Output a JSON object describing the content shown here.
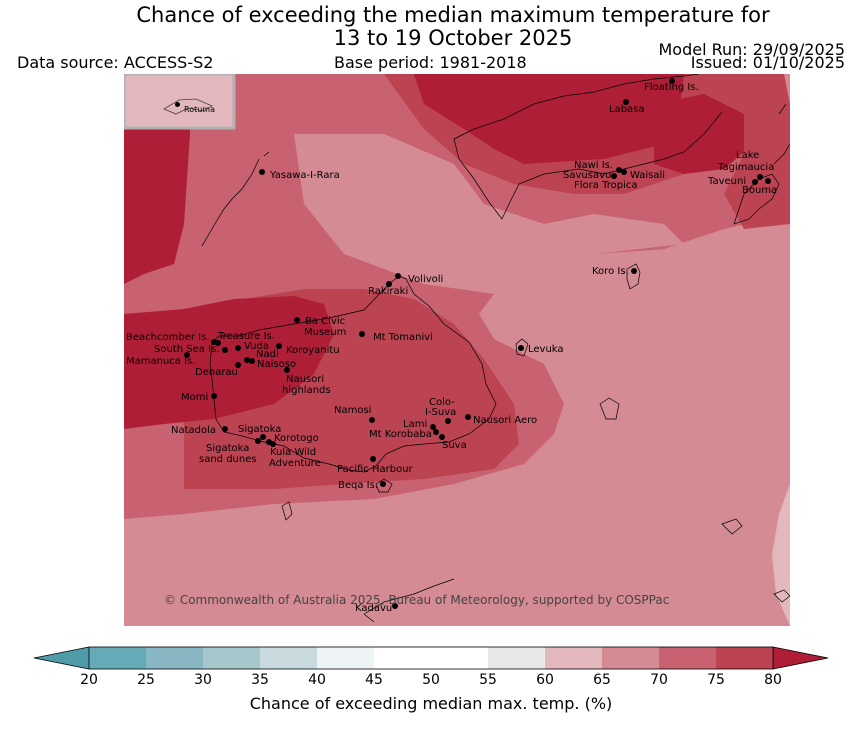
{
  "title_line1": "Chance of exceeding the median maximum temperature for",
  "title_line2": "13 to 19 October 2025",
  "data_source": "Data source: ACCESS-S2",
  "base_period": "Base period: 1981-2018",
  "model_run": "Model Run: 29/09/2025",
  "issued": "Issued: 01/10/2025",
  "inset_label": "Rotuma",
  "copyright": "© Commonwealth of Australia 2025, Bureau of Meteorology, supported by COSPPac",
  "colorbar": {
    "label": "Chance of exceeding median max. temp. (%)",
    "ticks": [
      "20",
      "25",
      "30",
      "35",
      "40",
      "45",
      "50",
      "55",
      "60",
      "65",
      "70",
      "75",
      "80"
    ],
    "colors": {
      "c20_25": "#66aab8",
      "c25_30": "#88b6c2",
      "c30_35": "#a6c8cd",
      "c35_40": "#c8dade",
      "c40_45": "#eef3f5",
      "c45_50": "#ffffff",
      "c50_55": "#ffffff",
      "c55_60": "#e8e8e8",
      "c60_65": "#e2b8bd",
      "c65_70": "#d48b93",
      "c70_75": "#c86270",
      "c75_80": "#bc4352",
      "c80plus": "#ae1e37",
      "clow": "#4f9ba9"
    }
  },
  "places": {
    "floating": "Floating Is.",
    "labasa": "Labasa",
    "yasawa": "Yasawa-I-Rara",
    "nawi": "Nawi Is.",
    "savusavu": "Savusavu",
    "waisali": "Waisali",
    "flora": "Flora Tropica",
    "lake": "Lake",
    "tagimaucia": "Tagimaucia",
    "taveuni": "Taveuni",
    "bouma": "Bouma",
    "koro": "Koro Is.",
    "volivoli": "Volivoli",
    "rakiraki": "Rakiraki",
    "ba": "Ba Civic",
    "museum": "Museum",
    "tomanivi": "Mt Tomanivi",
    "beachcomber": "Beachcomber Is.",
    "treasure": "Treasure Is.",
    "southsea": "South Sea Is.",
    "vuda": "Vuda",
    "nadi": "Nadi",
    "koroyanitu": "Koroyanitu",
    "mamanuca": "Mamanuca Is.",
    "naisoso": "Naisoso",
    "denarau": "Denarau",
    "nausori_hl": "Nausori",
    "highlands": "highlands",
    "levuka": "Levuka",
    "momi": "Momi",
    "namosi": "Namosi",
    "colo": "Colo-",
    "isuva": "I-Suva",
    "lami": "Lami",
    "korobaba": "Mt Korobaba",
    "nausori_aero": "Nausori Aero",
    "suva": "Suva",
    "natadola": "Natadola",
    "sigatoka": "Sigatoka",
    "korotogo": "Korotogo",
    "sig_sand": "Sigatoka",
    "sand_dunes": "sand dunes",
    "kula": "Kula Wild",
    "adventure": "Adventure",
    "pacific": "Pacific Harbour",
    "beqa": "Beqa Is.",
    "kadavu": "Kadavu"
  }
}
